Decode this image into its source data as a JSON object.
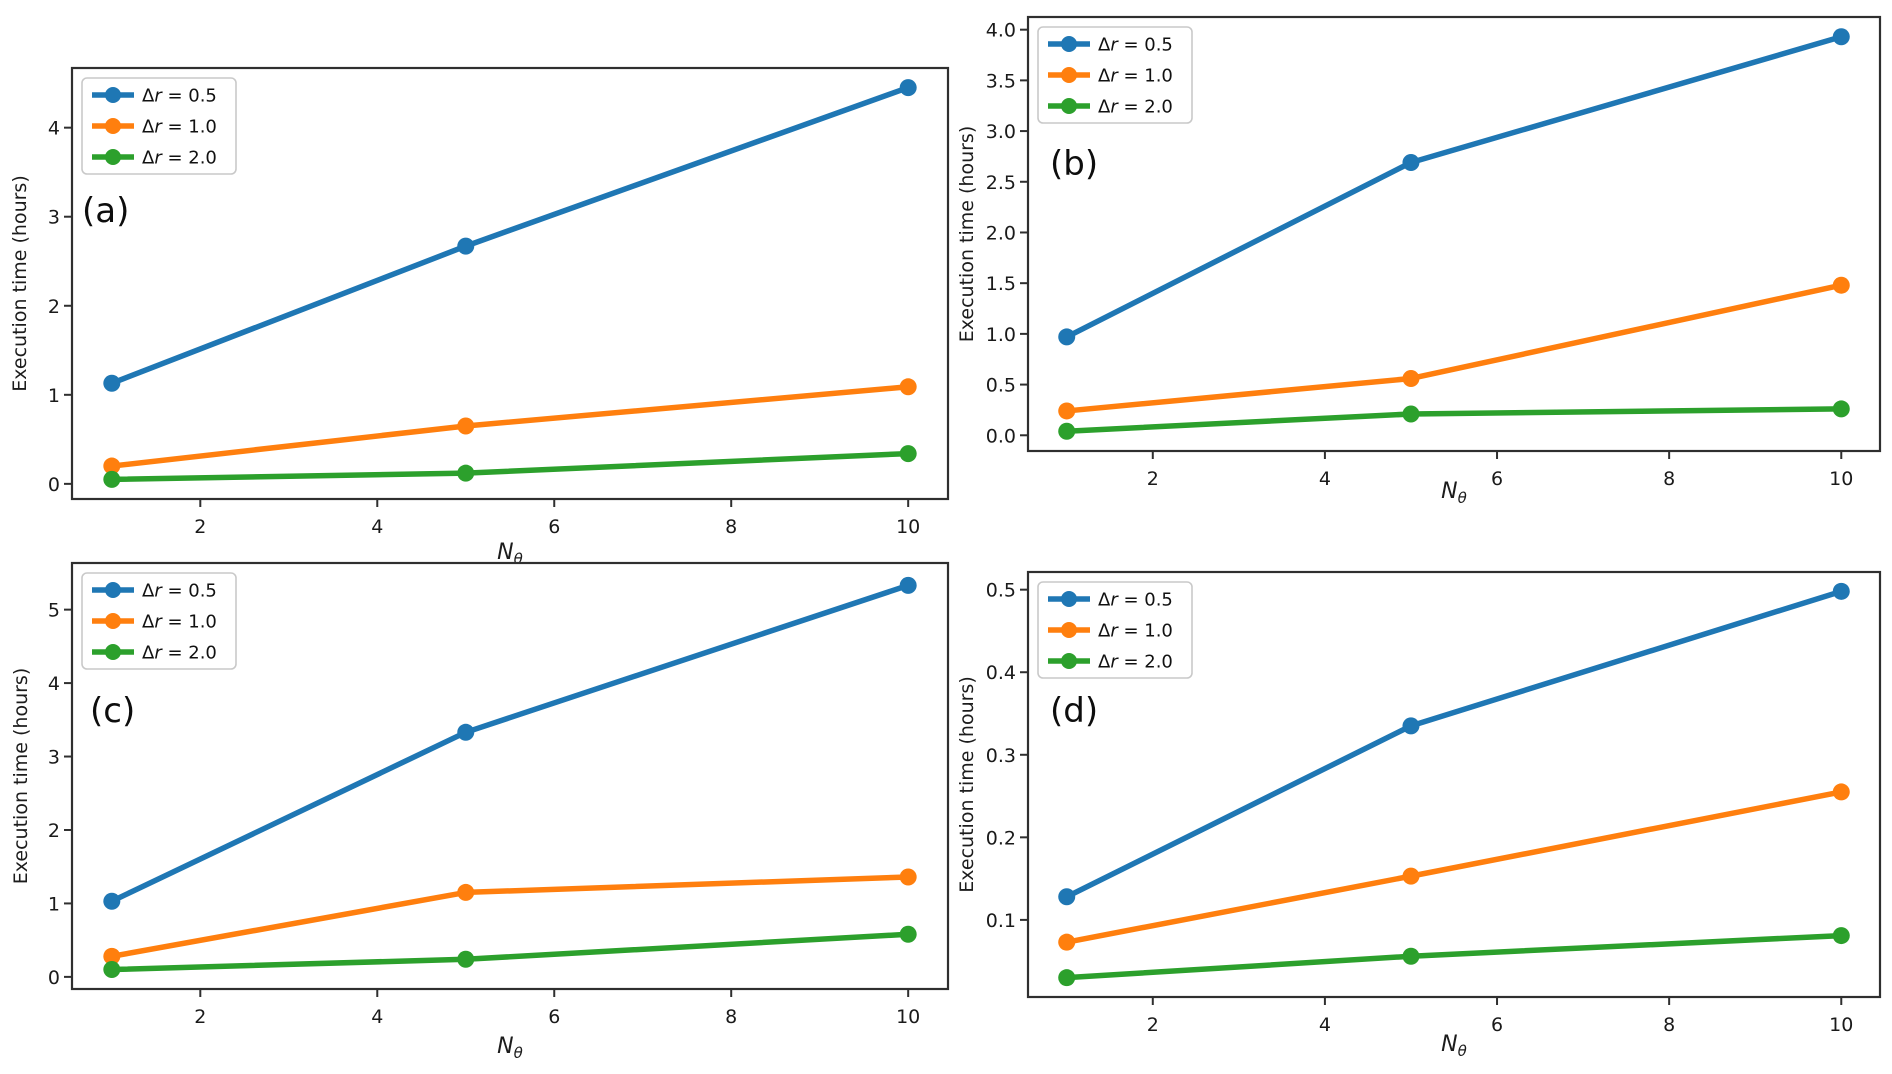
{
  "figure": {
    "background": "#ffffff",
    "spine_color": "#2f2f2f",
    "tick_color": "#1a1a1a"
  },
  "chart_data": [
    {
      "type": "line",
      "panel_label": "(a)",
      "xlabel_main": "N",
      "xlabel_sub": "θ",
      "ylabel": "Execution time (hours)",
      "x": [
        1,
        5,
        10
      ],
      "xticks": [
        2,
        4,
        6,
        8,
        10
      ],
      "xlim": [
        0.55,
        10.45
      ],
      "ylim": [
        -0.17,
        4.67
      ],
      "yticks": [
        0,
        1,
        2,
        3,
        4
      ],
      "ytick_decimals": 0,
      "legend_position": "upper-left",
      "grid": false,
      "series": [
        {
          "name": "Δr = 0.5",
          "color": "#1f77b4",
          "values": [
            1.13,
            2.67,
            4.45
          ]
        },
        {
          "name": "Δr = 1.0",
          "color": "#ff7f0e",
          "values": [
            0.2,
            0.65,
            1.09
          ]
        },
        {
          "name": "Δr = 2.0",
          "color": "#2ca02c",
          "values": [
            0.05,
            0.12,
            0.34
          ]
        }
      ]
    },
    {
      "type": "line",
      "panel_label": "(b)",
      "xlabel_main": "N",
      "xlabel_sub": "θ",
      "ylabel": "Execution time (hours)",
      "x": [
        1,
        5,
        10
      ],
      "xticks": [
        2,
        4,
        6,
        8,
        10
      ],
      "xlim": [
        0.55,
        10.45
      ],
      "ylim": [
        -0.155,
        4.125
      ],
      "yticks": [
        0.0,
        0.5,
        1.0,
        1.5,
        2.0,
        2.5,
        3.0,
        3.5,
        4.0
      ],
      "ytick_decimals": 1,
      "legend_position": "upper-left",
      "grid": false,
      "series": [
        {
          "name": "Δr = 0.5",
          "color": "#1f77b4",
          "values": [
            0.97,
            2.69,
            3.93
          ]
        },
        {
          "name": "Δr = 1.0",
          "color": "#ff7f0e",
          "values": [
            0.24,
            0.56,
            1.48
          ]
        },
        {
          "name": "Δr = 2.0",
          "color": "#2ca02c",
          "values": [
            0.04,
            0.21,
            0.26
          ]
        }
      ]
    },
    {
      "type": "line",
      "panel_label": "(c)",
      "xlabel_main": "N",
      "xlabel_sub": "θ",
      "ylabel": "Execution time (hours)",
      "x": [
        1,
        5,
        10
      ],
      "xticks": [
        2,
        4,
        6,
        8,
        10
      ],
      "xlim": [
        0.55,
        10.45
      ],
      "ylim": [
        -0.165,
        5.635
      ],
      "yticks": [
        0,
        1,
        2,
        3,
        4,
        5
      ],
      "ytick_decimals": 0,
      "legend_position": "upper-left",
      "grid": false,
      "series": [
        {
          "name": "Δr = 0.5",
          "color": "#1f77b4",
          "values": [
            1.03,
            3.33,
            5.33
          ]
        },
        {
          "name": "Δr = 1.0",
          "color": "#ff7f0e",
          "values": [
            0.28,
            1.15,
            1.36
          ]
        },
        {
          "name": "Δr = 2.0",
          "color": "#2ca02c",
          "values": [
            0.1,
            0.24,
            0.58
          ]
        }
      ]
    },
    {
      "type": "line",
      "panel_label": "(d)",
      "xlabel_main": "N",
      "xlabel_sub": "θ",
      "ylabel": "Execution time (hours)",
      "x": [
        1,
        5,
        10
      ],
      "xticks": [
        2,
        4,
        6,
        8,
        10
      ],
      "xlim": [
        0.55,
        10.45
      ],
      "ylim": [
        0.0066,
        0.5214
      ],
      "yticks": [
        0.1,
        0.2,
        0.3,
        0.4,
        0.5
      ],
      "ytick_decimals": 1,
      "legend_position": "upper-left",
      "grid": false,
      "series": [
        {
          "name": "Δr = 0.5",
          "color": "#1f77b4",
          "values": [
            0.128,
            0.335,
            0.498
          ]
        },
        {
          "name": "Δr = 1.0",
          "color": "#ff7f0e",
          "values": [
            0.073,
            0.153,
            0.255
          ]
        },
        {
          "name": "Δr = 2.0",
          "color": "#2ca02c",
          "values": [
            0.03,
            0.056,
            0.081
          ]
        }
      ]
    }
  ]
}
